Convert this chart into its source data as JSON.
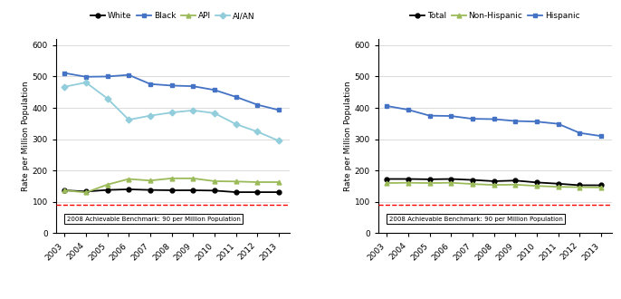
{
  "years": [
    2003,
    2004,
    2005,
    2006,
    2007,
    2008,
    2009,
    2010,
    2011,
    2012,
    2013
  ],
  "left": {
    "White": [
      137,
      133,
      138,
      140,
      138,
      137,
      137,
      136,
      131,
      131,
      131
    ],
    "Black": [
      511,
      499,
      500,
      505,
      476,
      471,
      469,
      457,
      435,
      410,
      393
    ],
    "API": [
      137,
      130,
      155,
      173,
      168,
      175,
      175,
      166,
      165,
      163,
      163
    ],
    "AI/AN": [
      467,
      481,
      430,
      362,
      375,
      385,
      392,
      383,
      348,
      324,
      295
    ],
    "colors": {
      "White": "#000000",
      "Black": "#4472C4",
      "API": "#9BBB59",
      "AI/AN": "#92CDDC"
    },
    "markers": {
      "White": "o",
      "Black": "s",
      "API": "^",
      "AI/AN": "D"
    },
    "benchmark": 90,
    "ylabel": "Rate per Million Population",
    "ylim": [
      0,
      620
    ],
    "yticks": [
      0,
      100,
      200,
      300,
      400,
      500,
      600
    ]
  },
  "right": {
    "Total": [
      173,
      173,
      172,
      173,
      170,
      166,
      168,
      162,
      158,
      153,
      153
    ],
    "Non-Hispanic": [
      160,
      161,
      160,
      161,
      157,
      154,
      155,
      151,
      148,
      147,
      146
    ],
    "Hispanic": [
      406,
      394,
      375,
      374,
      365,
      364,
      358,
      356,
      349,
      320,
      310
    ],
    "colors": {
      "Total": "#000000",
      "Non-Hispanic": "#9BBB59",
      "Hispanic": "#4472C4"
    },
    "markers": {
      "Total": "o",
      "Non-Hispanic": "^",
      "Hispanic": "s"
    },
    "benchmark": 90,
    "ylabel": "Rate per Million Population",
    "ylim": [
      0,
      620
    ],
    "yticks": [
      0,
      100,
      200,
      300,
      400,
      500,
      600
    ]
  },
  "benchmark_color": "#FF0000",
  "benchmark_label": "2008 Achievable Benchmark: 90 per Million Population",
  "left_series": [
    "White",
    "Black",
    "API",
    "AI/AN"
  ],
  "right_series": [
    "Total",
    "Non-Hispanic",
    "Hispanic"
  ]
}
